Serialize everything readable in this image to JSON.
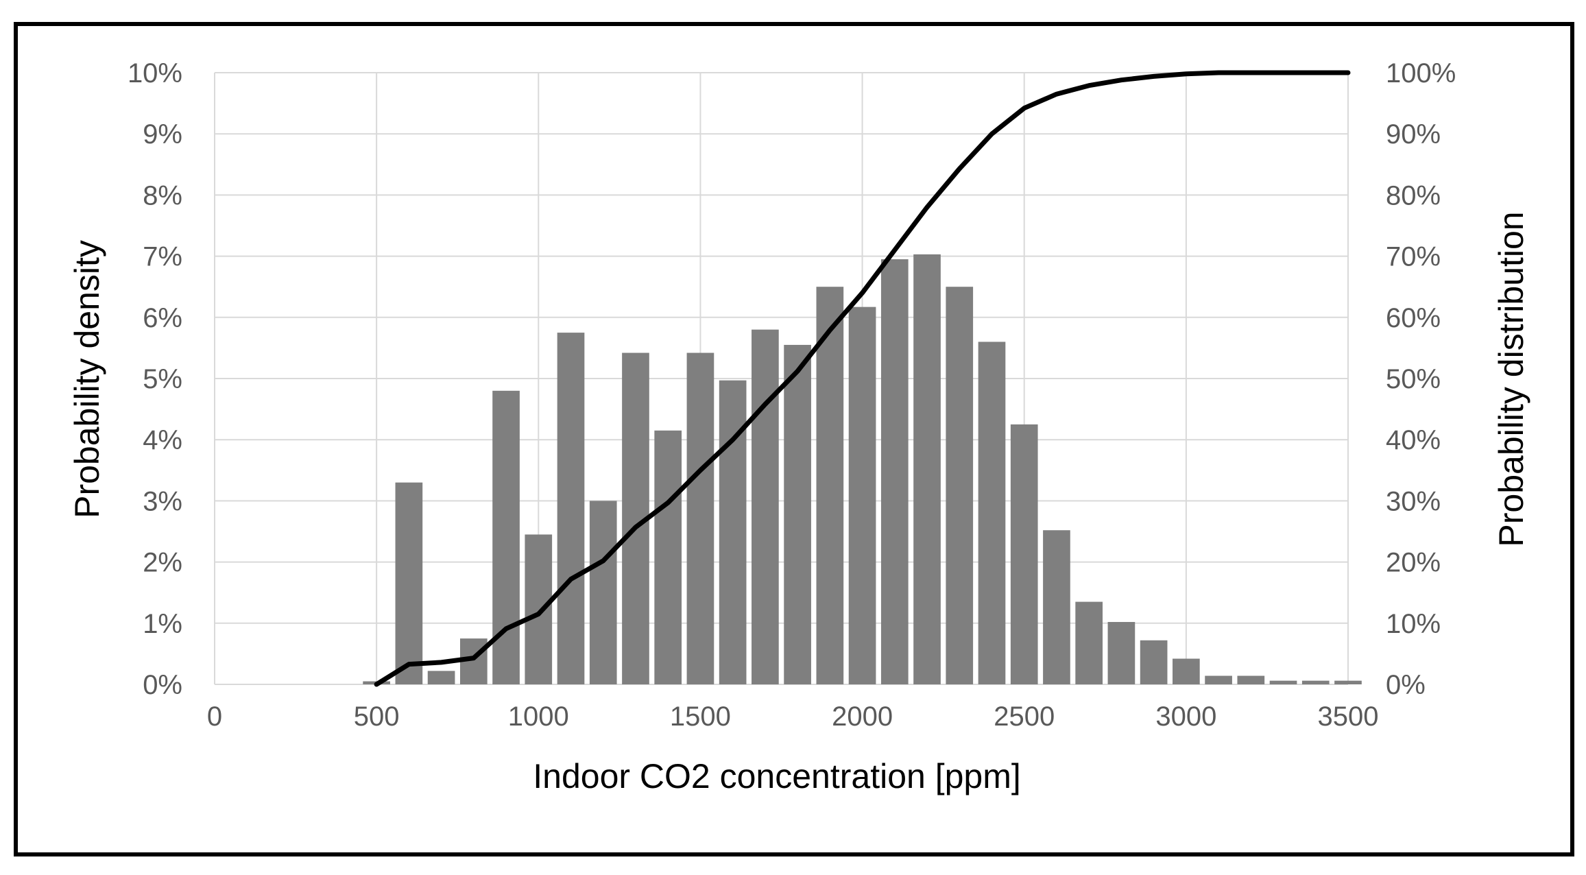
{
  "chart_data": {
    "type": "bar",
    "title": "",
    "xlabel": "Indoor CO2 concentration [ppm]",
    "ylabel": "Probability density",
    "y2label": "Probability distribution",
    "xlim": [
      0,
      3500
    ],
    "ylim": [
      0,
      10
    ],
    "y2lim": [
      0,
      100
    ],
    "x_ticks": [
      "0",
      "500",
      "1000",
      "1500",
      "2000",
      "2500",
      "3000",
      "3500"
    ],
    "y_ticks": [
      "0%",
      "1%",
      "2%",
      "3%",
      "4%",
      "5%",
      "6%",
      "7%",
      "8%",
      "9%",
      "10%"
    ],
    "y2_ticks": [
      "0%",
      "10%",
      "20%",
      "30%",
      "40%",
      "50%",
      "60%",
      "70%",
      "80%",
      "90%",
      "100%"
    ],
    "grid": true,
    "colors": {
      "bar": "#7f7f7f",
      "line": "#000000",
      "grid": "#d9d9d9",
      "text": "#595959",
      "axis_title": "#000000"
    },
    "series": [
      {
        "name": "Probability density",
        "type": "bar",
        "axis": "left",
        "x": [
          500,
          600,
          700,
          800,
          900,
          1000,
          1100,
          1200,
          1300,
          1400,
          1500,
          1600,
          1700,
          1800,
          1900,
          2000,
          2100,
          2200,
          2300,
          2400,
          2500,
          2600,
          2700,
          2800,
          2900,
          3000,
          3100,
          3200,
          3300,
          3400,
          3500
        ],
        "values": [
          0.05,
          3.3,
          0.22,
          0.75,
          4.8,
          2.45,
          5.75,
          3.0,
          5.42,
          4.15,
          5.42,
          4.97,
          5.8,
          5.55,
          6.5,
          6.17,
          6.95,
          7.03,
          6.5,
          5.6,
          4.25,
          2.52,
          1.35,
          1.02,
          0.72,
          0.42,
          0.14,
          0.14,
          0.06,
          0.06,
          0.06
        ]
      },
      {
        "name": "Probability distribution",
        "type": "line",
        "axis": "right",
        "x": [
          500,
          600,
          700,
          800,
          900,
          1000,
          1100,
          1200,
          1300,
          1400,
          1500,
          1600,
          1700,
          1800,
          1900,
          2000,
          2100,
          2200,
          2300,
          2400,
          2500,
          2600,
          2700,
          2800,
          2900,
          3000,
          3100,
          3200,
          3300,
          3400,
          3500
        ],
        "values": [
          0,
          3.3,
          3.6,
          4.3,
          9.1,
          11.5,
          17.2,
          20.2,
          25.7,
          29.7,
          35.0,
          40.0,
          45.8,
          51.2,
          57.9,
          64.0,
          71.0,
          78.0,
          84.3,
          90.0,
          94.2,
          96.5,
          97.9,
          98.8,
          99.4,
          99.8,
          100,
          100,
          100,
          100,
          100
        ]
      }
    ]
  }
}
